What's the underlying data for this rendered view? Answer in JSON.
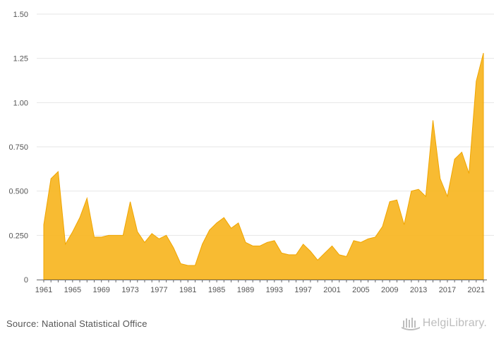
{
  "chart_data": {
    "type": "area",
    "title": "",
    "xlabel": "",
    "ylabel": "",
    "x": [
      1961,
      1962,
      1963,
      1964,
      1965,
      1966,
      1967,
      1968,
      1969,
      1970,
      1971,
      1972,
      1973,
      1974,
      1975,
      1976,
      1977,
      1978,
      1979,
      1980,
      1981,
      1982,
      1983,
      1984,
      1985,
      1986,
      1987,
      1988,
      1989,
      1990,
      1991,
      1992,
      1993,
      1994,
      1995,
      1996,
      1997,
      1998,
      1999,
      2000,
      2001,
      2002,
      2003,
      2004,
      2005,
      2006,
      2007,
      2008,
      2009,
      2010,
      2011,
      2012,
      2013,
      2014,
      2015,
      2016,
      2017,
      2018,
      2019,
      2020,
      2021,
      2022
    ],
    "series": [
      {
        "values": [
          0.31,
          0.57,
          0.61,
          0.2,
          0.27,
          0.35,
          0.46,
          0.24,
          0.24,
          0.25,
          0.25,
          0.25,
          0.44,
          0.27,
          0.21,
          0.26,
          0.23,
          0.25,
          0.18,
          0.09,
          0.08,
          0.08,
          0.2,
          0.28,
          0.32,
          0.35,
          0.29,
          0.32,
          0.21,
          0.19,
          0.19,
          0.21,
          0.22,
          0.15,
          0.14,
          0.14,
          0.2,
          0.16,
          0.11,
          0.15,
          0.19,
          0.14,
          0.13,
          0.22,
          0.21,
          0.23,
          0.24,
          0.3,
          0.44,
          0.45,
          0.31,
          0.5,
          0.51,
          0.47,
          0.9,
          0.57,
          0.47,
          0.68,
          0.72,
          0.6,
          1.12,
          1.28
        ]
      }
    ],
    "ylim": [
      0,
      1.5
    ],
    "yticks": [
      "0",
      "0.250",
      "0.500",
      "0.750",
      "1.00",
      "1.25",
      "1.50"
    ],
    "ytick_values": [
      0,
      0.25,
      0.5,
      0.75,
      1.0,
      1.25,
      1.5
    ],
    "xticks": [
      1961,
      1965,
      1969,
      1973,
      1977,
      1981,
      1985,
      1989,
      1993,
      1997,
      2001,
      2005,
      2009,
      2013,
      2017,
      2021
    ],
    "grid": true,
    "colors": {
      "area_fill": "#f7b521",
      "area_stroke": "#f0a500",
      "grid": "#e6e6e6"
    }
  },
  "footer": {
    "source": "Source: National Statistical Office",
    "logo_text": "HelgiLibrary."
  },
  "icons": {
    "logo": "helgi-library-logo-icon"
  }
}
